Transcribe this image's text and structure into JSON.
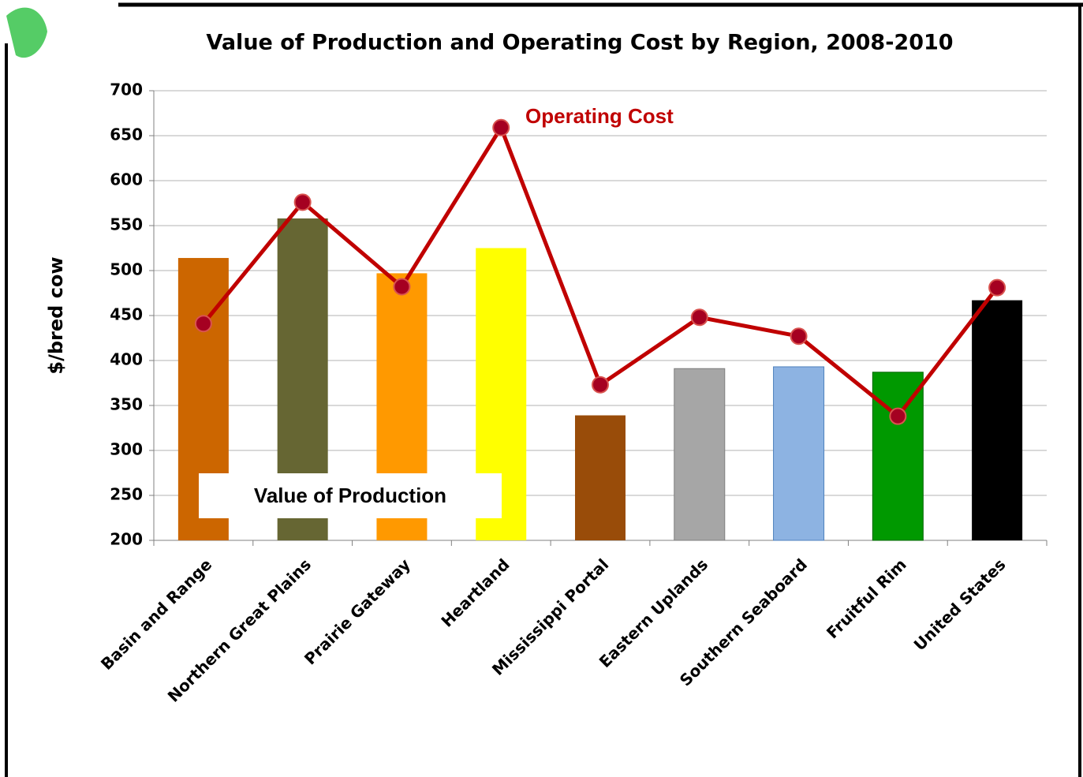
{
  "chart_data": {
    "type": "bar-line",
    "title": "Value of Production and Operating Cost by Region, 2008-2010",
    "y_label": "$/bred cow",
    "categories": [
      "Basin and Range",
      "Northern Great Plains",
      "Prairie Gateway",
      "Heartland",
      "Mississippi Portal",
      "Eastern Uplands",
      "Southern Seaboard",
      "Fruitful Rim",
      "United States"
    ],
    "series": [
      {
        "name": "Value of Production",
        "type": "bar",
        "colors": [
          "#cc6600",
          "#666633",
          "#ff9900",
          "#ffff00",
          "#994c09",
          "#a6a6a6",
          "#8db3e2",
          "#009900",
          "#000000"
        ],
        "values": [
          514,
          558,
          497,
          525,
          339,
          391,
          393,
          387,
          467
        ]
      },
      {
        "name": "Operating Cost",
        "type": "line",
        "color": "#c00000",
        "values": [
          441,
          576,
          482,
          659,
          373,
          448,
          427,
          338,
          481
        ]
      }
    ],
    "ylim": [
      200,
      700
    ],
    "yticks": [
      200,
      250,
      300,
      350,
      400,
      450,
      500,
      550,
      600,
      650,
      700
    ],
    "grid": true
  }
}
